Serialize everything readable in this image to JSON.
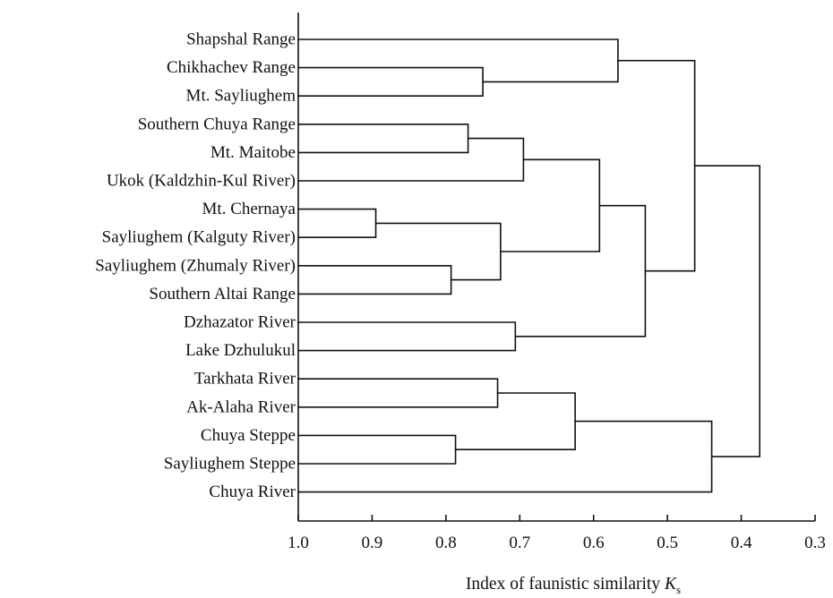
{
  "chart_data": {
    "type": "dendrogram",
    "xlabel_text": "Index of faunistic similarity ",
    "xlabel_symbol": "K",
    "xlabel_subscript": "s",
    "xlim": [
      1.0,
      0.3
    ],
    "ticks": [
      "1.0",
      "0.9",
      "0.8",
      "0.7",
      "0.6",
      "0.5",
      "0.4",
      "0.3"
    ],
    "leaves": [
      "Shapshal Range",
      "Chikhachev Range",
      "Mt. Sayliughem",
      "Southern Chuya Range",
      "Mt. Maitobe",
      "Ukok (Kaldzhin-Kul River)",
      "Mt. Chernaya",
      "Sayliughem (Kalguty River)",
      "Sayliughem (Zhumaly River)",
      "Southern Altai Range",
      "Dzhazator River",
      "Lake Dzhulukul",
      "Tarkhata River",
      "Ak-Alaha River",
      "Chuya Steppe",
      "Sayliughem Steppe",
      "Chuya River"
    ],
    "merges": [
      {
        "a": "L1",
        "b": "L2",
        "value": 0.75
      },
      {
        "a": "L0",
        "b": "M0",
        "value": 0.567
      },
      {
        "a": "L3",
        "b": "L4",
        "value": 0.77
      },
      {
        "a": "M2",
        "b": "L5",
        "value": 0.695
      },
      {
        "a": "L6",
        "b": "L7",
        "value": 0.895
      },
      {
        "a": "L8",
        "b": "L9",
        "value": 0.793
      },
      {
        "a": "M4",
        "b": "M5",
        "value": 0.726
      },
      {
        "a": "M3",
        "b": "M6",
        "value": 0.592
      },
      {
        "a": "L10",
        "b": "L11",
        "value": 0.706
      },
      {
        "a": "M7",
        "b": "M8",
        "value": 0.53
      },
      {
        "a": "M1",
        "b": "M9",
        "value": 0.463
      },
      {
        "a": "L12",
        "b": "L13",
        "value": 0.73
      },
      {
        "a": "L14",
        "b": "L15",
        "value": 0.787
      },
      {
        "a": "M11",
        "b": "M12",
        "value": 0.625
      },
      {
        "a": "M13",
        "b": "L16",
        "value": 0.44
      },
      {
        "a": "M10",
        "b": "M14",
        "value": 0.375
      }
    ]
  }
}
